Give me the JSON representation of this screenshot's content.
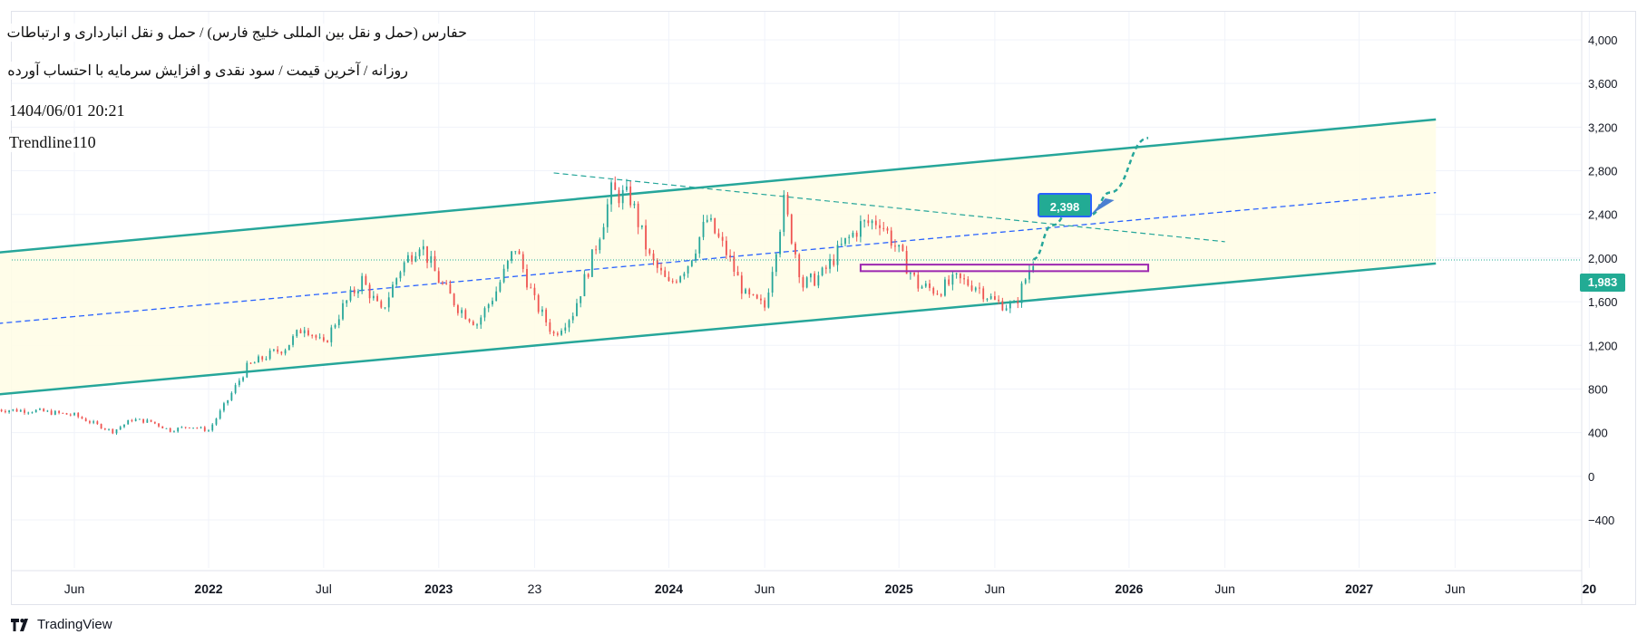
{
  "header": {
    "title": "حفارس (حمل و نقل بین المللی خلیج فارس) / حمل و نقل انبارداری و ارتباطات",
    "subtitle": "روزانه / آخرین قیمت / سود نقدی و افزایش سرمایه با احتساب آورده",
    "datetime": "1404/06/01 20:21",
    "study": "Trendline110"
  },
  "brand": {
    "label": "TradingView",
    "icon": "tradingview-logo-icon"
  },
  "chart_data": {
    "type": "line",
    "title": "حفارس (حمل و نقل بین المللی خلیج فارس) / حمل و نقل انبارداری و ارتباطات",
    "y_axis": {
      "ticks": [
        4000,
        3600,
        3200,
        2800,
        2400,
        2000,
        1600,
        1200,
        800,
        400,
        0,
        -400
      ],
      "range": [
        -400,
        4100
      ],
      "position": "right"
    },
    "x_axis": {
      "ticks": [
        {
          "label": "Jun",
          "x": "2021-06",
          "bold": false
        },
        {
          "label": "2022",
          "x": "2022-01",
          "bold": true
        },
        {
          "label": "Jul",
          "x": "2022-07",
          "bold": false
        },
        {
          "label": "2023",
          "x": "2023-01",
          "bold": true
        },
        {
          "label": "23",
          "x": "2023-06",
          "bold": false
        },
        {
          "label": "2024",
          "x": "2024-01",
          "bold": true
        },
        {
          "label": "Jun",
          "x": "2024-06",
          "bold": false
        },
        {
          "label": "2025",
          "x": "2025-01",
          "bold": true
        },
        {
          "label": "Jun",
          "x": "2025-06",
          "bold": false
        },
        {
          "label": "2026",
          "x": "2026-01",
          "bold": true
        },
        {
          "label": "Jun",
          "x": "2026-06",
          "bold": false
        },
        {
          "label": "2027",
          "x": "2027-01",
          "bold": true
        },
        {
          "label": "Jun",
          "x": "2027-06",
          "bold": false
        },
        {
          "label": "20",
          "x": "2028-01",
          "bold": true
        }
      ],
      "range": [
        "2021-02",
        "2028-01"
      ]
    },
    "series": [
      {
        "type": "candlestick",
        "color_up": "#26a69a",
        "color_down": "#ef5350",
        "close": [
          [
            "2021-02",
            610
          ],
          [
            "2021-04",
            600
          ],
          [
            "2021-06",
            560
          ],
          [
            "2021-08",
            410
          ],
          [
            "2021-09",
            520
          ],
          [
            "2021-10",
            500
          ],
          [
            "2021-11",
            420
          ],
          [
            "2021-12",
            460
          ],
          [
            "2022-01",
            420
          ],
          [
            "2022-02",
            700
          ],
          [
            "2022-03",
            1000
          ],
          [
            "2022-04",
            1100
          ],
          [
            "2022-05",
            1180
          ],
          [
            "2022-06",
            1380
          ],
          [
            "2022-07",
            1200
          ],
          [
            "2022-08",
            1550
          ],
          [
            "2022-09",
            1800
          ],
          [
            "2022-10",
            1500
          ],
          [
            "2022-11",
            1900
          ],
          [
            "2022-12",
            2150
          ],
          [
            "2023-01",
            1800
          ],
          [
            "2023-02",
            1550
          ],
          [
            "2023-03",
            1400
          ],
          [
            "2023-04",
            1700
          ],
          [
            "2023-05",
            2100
          ],
          [
            "2023-06",
            1600
          ],
          [
            "2023-07",
            1300
          ],
          [
            "2023-08",
            1500
          ],
          [
            "2023-09",
            2000
          ],
          [
            "2023-10",
            2600
          ],
          [
            "2023-11",
            2550
          ],
          [
            "2023-12",
            2000
          ],
          [
            "2024-01",
            1750
          ],
          [
            "2024-02",
            1950
          ],
          [
            "2024-03",
            2350
          ],
          [
            "2024-04",
            2050
          ],
          [
            "2024-05",
            1650
          ],
          [
            "2024-06",
            1550
          ],
          [
            "2024-07",
            2500
          ],
          [
            "2024-08",
            1750
          ],
          [
            "2024-09",
            1850
          ],
          [
            "2024-10",
            2100
          ],
          [
            "2024-11",
            2300
          ],
          [
            "2024-12",
            2350
          ],
          [
            "2025-01",
            2050
          ],
          [
            "2025-02",
            1750
          ],
          [
            "2025-03",
            1700
          ],
          [
            "2025-04",
            1800
          ],
          [
            "2025-05",
            1750
          ],
          [
            "2025-06",
            1600
          ],
          [
            "2025-07",
            1550
          ],
          [
            "2025-08",
            1983
          ]
        ],
        "last": 1983
      }
    ],
    "channel": {
      "color": "#26a69a",
      "fill": "#fffde7",
      "upper": [
        [
          "2021-02",
          2050
        ],
        [
          "2027-05",
          3270
        ]
      ],
      "lower": [
        [
          "2021-02",
          750
        ],
        [
          "2027-05",
          1950
        ]
      ],
      "midline": {
        "color": "#2962ff",
        "dashed": true,
        "points": [
          [
            "2021-02",
            1400
          ],
          [
            "2027-05",
            2600
          ]
        ]
      }
    },
    "trendline": {
      "color": "#26a69a",
      "dashed": true,
      "points": [
        [
          "2023-07",
          2780
        ],
        [
          "2026-06",
          2150
        ]
      ]
    },
    "price_line": {
      "value": 1983,
      "label": "1,983",
      "color": "#22ab94"
    },
    "zone": {
      "color": "#9c27b0",
      "from": "2024-11",
      "to": "2026-02",
      "low": 1880,
      "high": 1940
    },
    "projection": {
      "color": "#26a69a",
      "dashed": true,
      "points": [
        [
          "2025-08",
          1990
        ],
        [
          "2025-09",
          2300
        ],
        [
          "2025-10",
          2450
        ],
        [
          "2025-11",
          2398
        ],
        [
          "2025-12",
          2600
        ],
        [
          "2026-02",
          3100
        ]
      ]
    },
    "callout": {
      "label": "2,398",
      "value": 2398
    }
  }
}
